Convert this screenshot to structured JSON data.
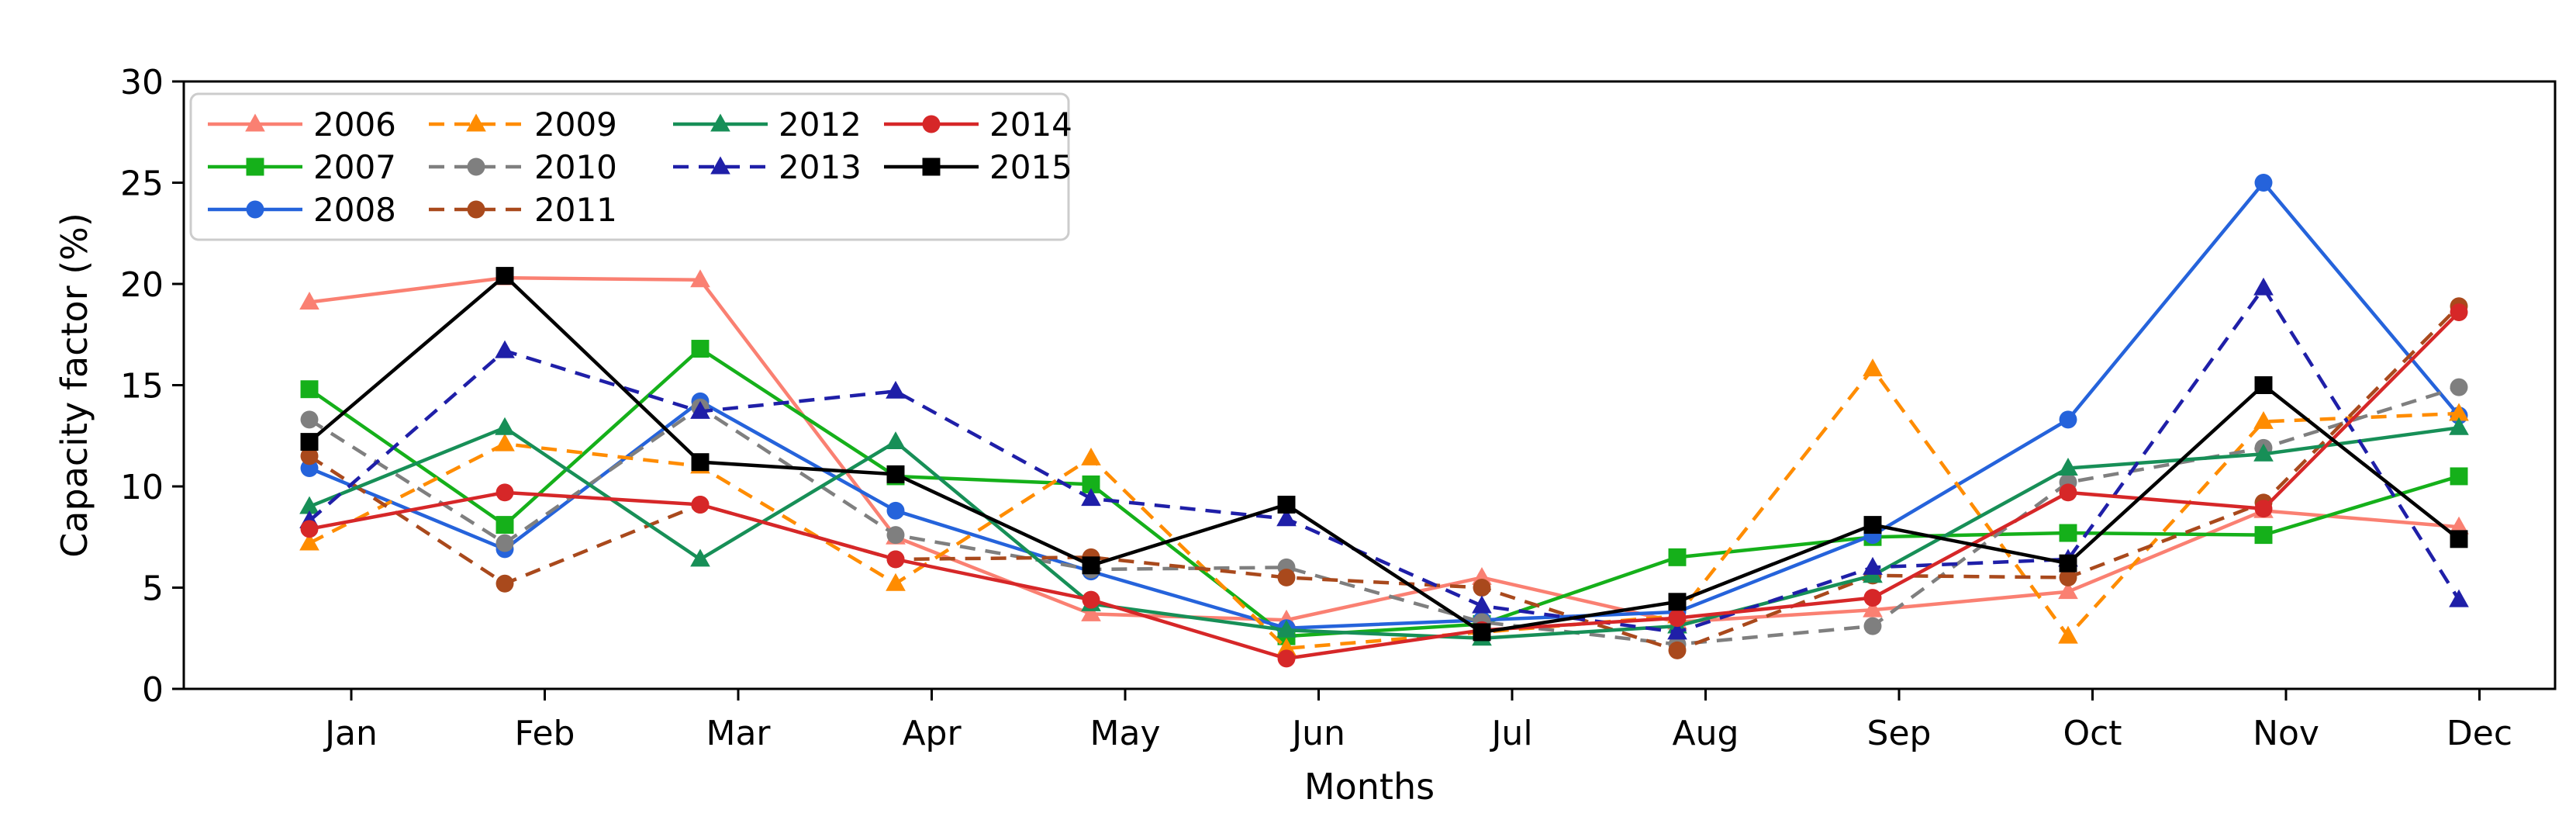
{
  "figure": {
    "background": "#ffffff",
    "spine_color": "#000000"
  },
  "chart_data": {
    "type": "line",
    "title": "",
    "xlabel": "Months",
    "ylabel": "Capacity factor (%)",
    "ylim": [
      0,
      30
    ],
    "yticks": [
      0,
      5,
      10,
      15,
      20,
      25,
      30
    ],
    "grid": false,
    "legend_position": "upper-left",
    "categories": [
      "Jan",
      "Feb",
      "Mar",
      "Apr",
      "May",
      "Jun",
      "Jul",
      "Aug",
      "Sep",
      "Oct",
      "Nov",
      "Dec"
    ],
    "series": [
      {
        "name": "2006",
        "color": "#fa8072",
        "linestyle": "solid",
        "marker": "triangle",
        "values": [
          19.1,
          20.3,
          20.2,
          7.5,
          3.7,
          3.4,
          5.5,
          3.3,
          3.9,
          4.8,
          8.8,
          8.0
        ]
      },
      {
        "name": "2007",
        "color": "#15b01a",
        "linestyle": "solid",
        "marker": "square",
        "values": [
          14.8,
          8.1,
          16.8,
          10.5,
          10.1,
          2.6,
          3.2,
          6.5,
          7.5,
          7.7,
          7.6,
          10.5
        ]
      },
      {
        "name": "2008",
        "color": "#2563db",
        "linestyle": "solid",
        "marker": "circle",
        "values": [
          10.9,
          6.9,
          14.2,
          8.8,
          5.8,
          3.0,
          3.4,
          3.8,
          7.6,
          13.3,
          25.0,
          13.5
        ]
      },
      {
        "name": "2009",
        "color": "#ff8c00",
        "linestyle": "dashed",
        "marker": "triangle",
        "values": [
          7.2,
          12.1,
          11.0,
          5.2,
          11.4,
          2.0,
          2.8,
          3.6,
          15.8,
          2.6,
          13.2,
          13.6
        ]
      },
      {
        "name": "2010",
        "color": "#7f7f7f",
        "linestyle": "dashed",
        "marker": "circle",
        "values": [
          13.3,
          7.2,
          13.9,
          7.6,
          5.9,
          6.0,
          3.3,
          2.2,
          3.1,
          10.2,
          11.9,
          14.9
        ]
      },
      {
        "name": "2011",
        "color": "#a9491c",
        "linestyle": "dashed",
        "marker": "circle",
        "values": [
          11.5,
          5.2,
          9.1,
          6.4,
          6.5,
          5.5,
          5.0,
          1.9,
          5.6,
          5.5,
          9.2,
          18.9
        ]
      },
      {
        "name": "2012",
        "color": "#178f57",
        "linestyle": "solid",
        "marker": "triangle",
        "values": [
          9.0,
          12.9,
          6.4,
          12.2,
          4.2,
          2.9,
          2.5,
          3.1,
          5.6,
          10.9,
          11.6,
          12.9
        ]
      },
      {
        "name": "2013",
        "color": "#1f1fa8",
        "linestyle": "dashed",
        "marker": "triangle",
        "values": [
          8.3,
          16.7,
          13.7,
          14.7,
          9.4,
          8.4,
          4.1,
          2.8,
          6.0,
          6.4,
          19.8,
          4.4
        ]
      },
      {
        "name": "2014",
        "color": "#d62728",
        "linestyle": "solid",
        "marker": "circle",
        "values": [
          7.9,
          9.7,
          9.1,
          6.4,
          4.4,
          1.5,
          2.9,
          3.5,
          4.5,
          9.7,
          8.9,
          18.6
        ]
      },
      {
        "name": "2015",
        "color": "#000000",
        "linestyle": "solid",
        "marker": "square",
        "values": [
          12.2,
          20.4,
          11.2,
          10.6,
          6.1,
          9.1,
          2.8,
          4.3,
          8.1,
          6.2,
          15.0,
          7.4
        ]
      }
    ],
    "legend_columns": [
      [
        "2006",
        "2007",
        "2008"
      ],
      [
        "2009",
        "2010",
        "2011"
      ],
      [
        "2012",
        "2013"
      ],
      [
        "2014",
        "2015"
      ]
    ]
  }
}
